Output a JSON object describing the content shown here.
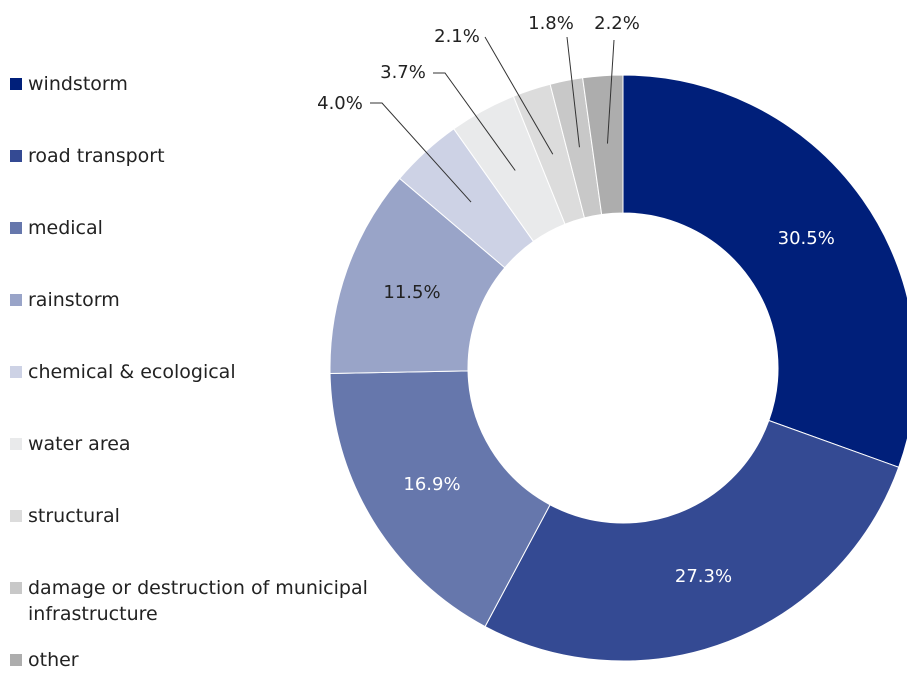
{
  "chart_data": {
    "type": "donut",
    "categories": [
      "windstorm",
      "road transport",
      "medical",
      "rainstorm",
      "chemical & ecological",
      "water area",
      "structural",
      "damage or destruction of municipal infrastructure",
      "other"
    ],
    "values": [
      30.5,
      27.3,
      16.9,
      11.5,
      4.0,
      3.7,
      2.1,
      1.8,
      2.2
    ],
    "value_labels": [
      "30.5%",
      "27.3%",
      "16.9%",
      "11.5%",
      "4.0%",
      "3.7%",
      "2.1%",
      "1.8%",
      "2.2%"
    ],
    "colors": [
      "#001f7a",
      "#344a93",
      "#6677ac",
      "#99a4c8",
      "#cdd2e5",
      "#e9eaeb",
      "#dcdcdc",
      "#c8c8c8",
      "#adadad"
    ],
    "legend": "left"
  }
}
